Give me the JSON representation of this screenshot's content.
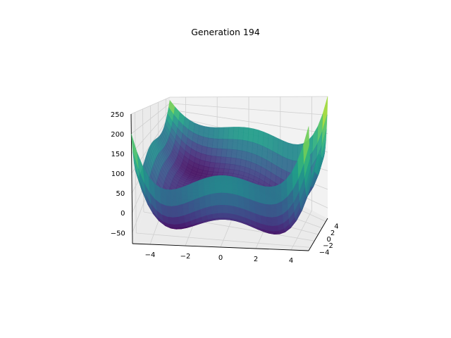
{
  "chart_data": {
    "type": "surface3d",
    "title": "Generation 194",
    "xlabel": "",
    "ylabel": "",
    "zlabel": "",
    "x_ticks": [
      "−4",
      "−2",
      "0",
      "2",
      "4"
    ],
    "y_ticks": [
      "−4",
      "−2",
      "0",
      "2",
      "4"
    ],
    "z_ticks": [
      "−50",
      "0",
      "50",
      "100",
      "150",
      "200",
      "250"
    ],
    "x_range": [
      -5,
      5
    ],
    "y_range": [
      -5,
      5
    ],
    "z_range": [
      -78,
      250
    ],
    "colormap": "viridis",
    "grid": true,
    "legend": "none",
    "function": "styblinski-tang: 0.5 * sum(v^4 - 16 v^2 + 5 v)",
    "z_min_value": -78.3,
    "z_max_value": 250
  },
  "colors": {
    "pane": "#f2f2f2",
    "pane_side": "#ebebeb",
    "grid": "#d0d0d0",
    "axis": "#000000",
    "viridis_low": "#440154",
    "viridis_mid": "#21918c",
    "viridis_high": "#fde725"
  }
}
